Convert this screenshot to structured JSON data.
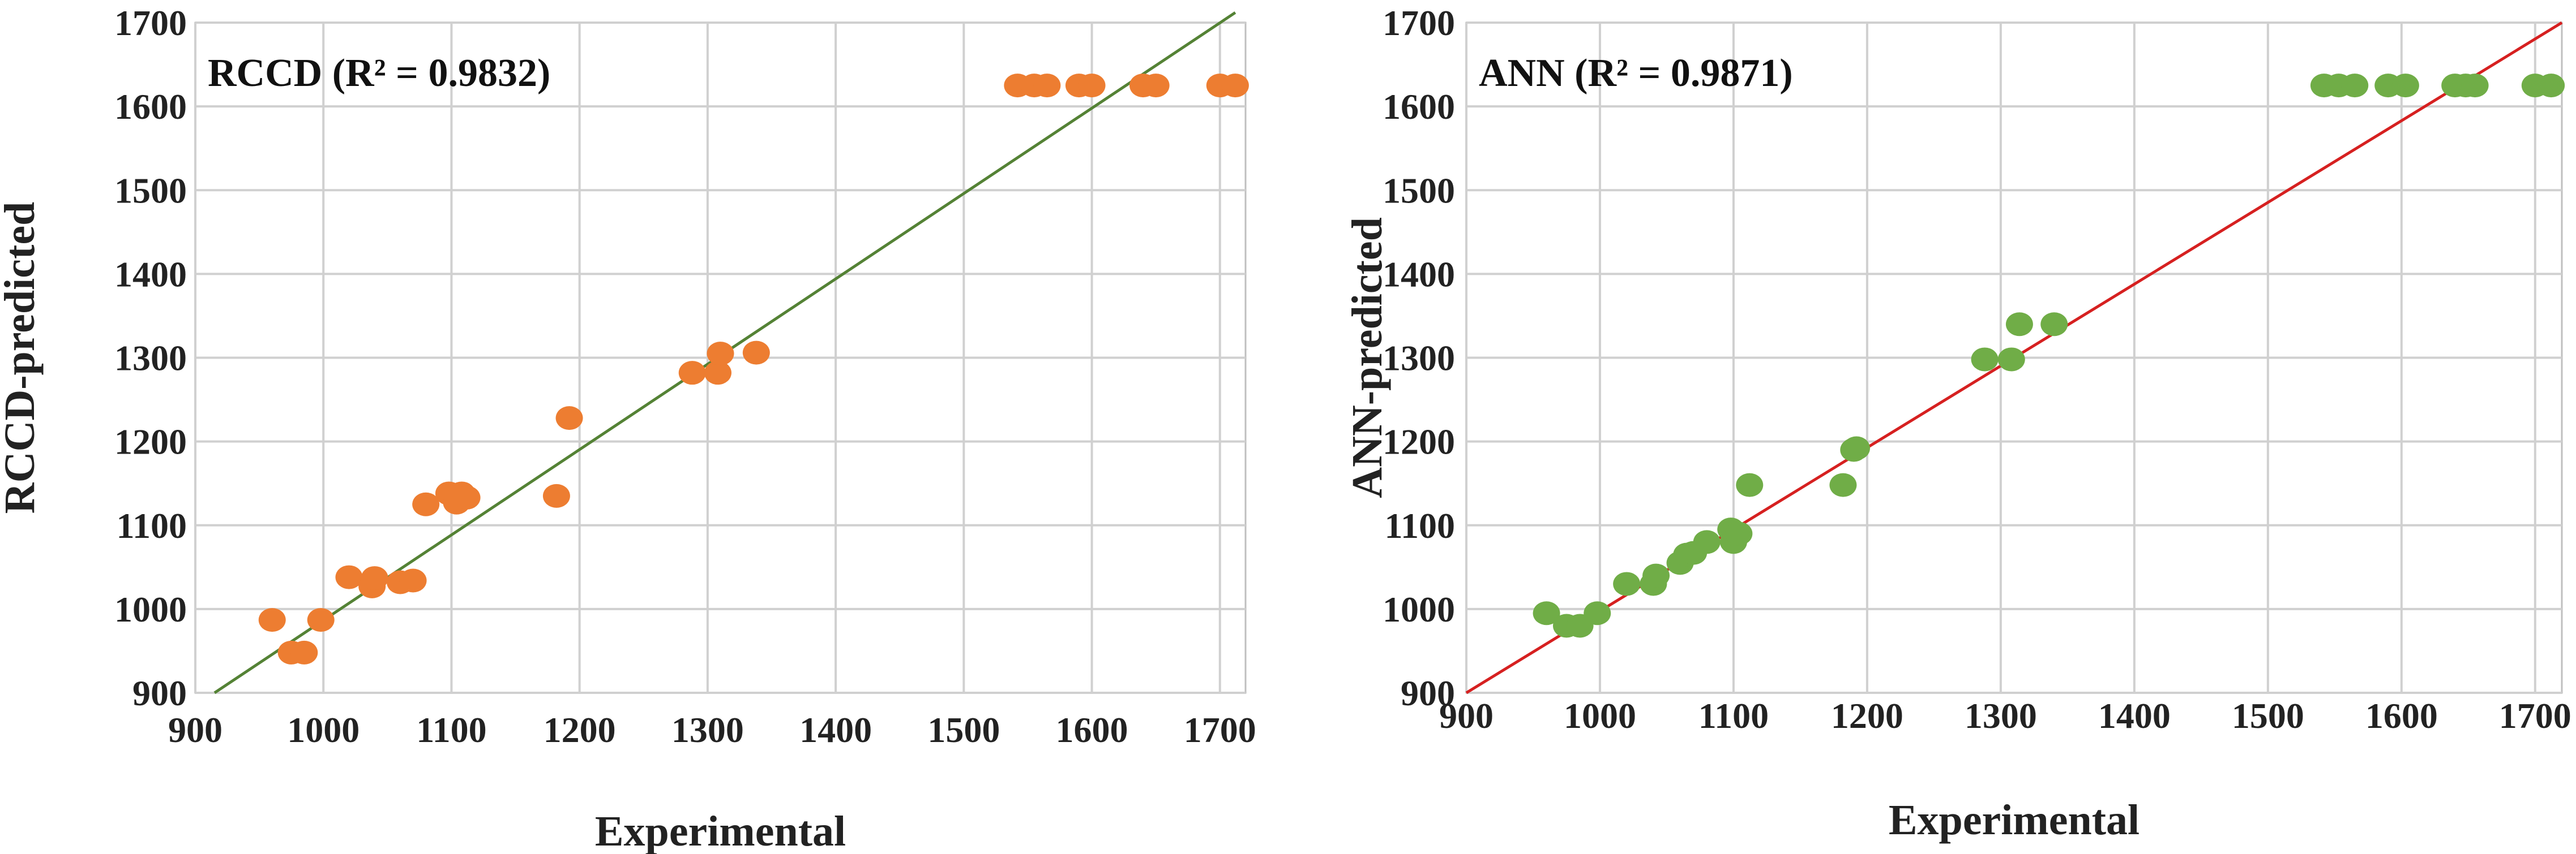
{
  "chart_data": [
    {
      "type": "scatter",
      "annotation": "RCCD (R² = 0.9832)",
      "xlabel": "Experimental",
      "ylabel": "RCCD-predicted",
      "xlim": [
        900,
        1720
      ],
      "ylim": [
        900,
        1700
      ],
      "xticks": [
        900,
        1000,
        1100,
        1200,
        1300,
        1400,
        1500,
        1600,
        1700
      ],
      "yticks": [
        900,
        1000,
        1100,
        1200,
        1300,
        1400,
        1500,
        1600,
        1700
      ],
      "grid": true,
      "point_color": "#ED7D31",
      "line_color": "#548235",
      "reference_line": [
        [
          915,
          900
        ],
        [
          1712,
          1712
        ]
      ],
      "points": [
        [
          960,
          987
        ],
        [
          975,
          948
        ],
        [
          985,
          948
        ],
        [
          998,
          987
        ],
        [
          1020,
          1038
        ],
        [
          1038,
          1027
        ],
        [
          1040,
          1037
        ],
        [
          1060,
          1032
        ],
        [
          1070,
          1034
        ],
        [
          1080,
          1125
        ],
        [
          1098,
          1138
        ],
        [
          1104,
          1127
        ],
        [
          1108,
          1138
        ],
        [
          1112,
          1133
        ],
        [
          1182,
          1135
        ],
        [
          1192,
          1228
        ],
        [
          1288,
          1282
        ],
        [
          1308,
          1282
        ],
        [
          1310,
          1305
        ],
        [
          1338,
          1306
        ],
        [
          1542,
          1625
        ],
        [
          1555,
          1625
        ],
        [
          1565,
          1625
        ],
        [
          1590,
          1625
        ],
        [
          1600,
          1625
        ],
        [
          1640,
          1625
        ],
        [
          1650,
          1625
        ],
        [
          1700,
          1625
        ],
        [
          1712,
          1625
        ]
      ]
    },
    {
      "type": "scatter",
      "annotation": "ANN (R² = 0.9871)",
      "xlabel": "Experimental",
      "ylabel": "ANN-predicted",
      "xlim": [
        900,
        1720
      ],
      "ylim": [
        900,
        1700
      ],
      "xticks": [
        900,
        1000,
        1100,
        1200,
        1300,
        1400,
        1500,
        1600,
        1700
      ],
      "yticks": [
        900,
        1000,
        1100,
        1200,
        1300,
        1400,
        1500,
        1600,
        1700
      ],
      "grid": true,
      "point_color": "#70AD47",
      "line_color": "#D62020",
      "reference_line": [
        [
          900,
          900
        ],
        [
          1720,
          1700
        ]
      ],
      "points": [
        [
          960,
          995
        ],
        [
          975,
          980
        ],
        [
          985,
          980
        ],
        [
          998,
          995
        ],
        [
          1020,
          1030
        ],
        [
          1040,
          1030
        ],
        [
          1042,
          1040
        ],
        [
          1060,
          1055
        ],
        [
          1065,
          1065
        ],
        [
          1070,
          1067
        ],
        [
          1080,
          1080
        ],
        [
          1098,
          1095
        ],
        [
          1100,
          1080
        ],
        [
          1104,
          1090
        ],
        [
          1112,
          1148
        ],
        [
          1182,
          1148
        ],
        [
          1190,
          1190
        ],
        [
          1192,
          1192
        ],
        [
          1288,
          1298
        ],
        [
          1308,
          1298
        ],
        [
          1314,
          1340
        ],
        [
          1340,
          1340
        ],
        [
          1542,
          1625
        ],
        [
          1553,
          1625
        ],
        [
          1565,
          1625
        ],
        [
          1590,
          1625
        ],
        [
          1603,
          1625
        ],
        [
          1640,
          1625
        ],
        [
          1648,
          1625
        ],
        [
          1655,
          1625
        ],
        [
          1700,
          1625
        ],
        [
          1712,
          1625
        ]
      ]
    }
  ]
}
